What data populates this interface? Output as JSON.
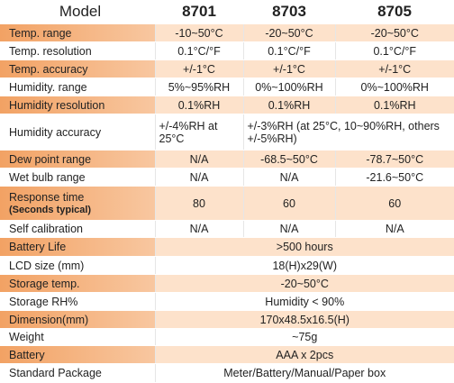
{
  "table": {
    "header": {
      "label": "Model",
      "models": [
        "8701",
        "8703",
        "8705"
      ]
    },
    "rows": [
      {
        "label": "Temp. range",
        "values": [
          "-10~50°C",
          "-20~50°C",
          "-20~50°C"
        ]
      },
      {
        "label": "Temp. resolution",
        "values": [
          "0.1°C/°F",
          "0.1°C/°F",
          "0.1°C/°F"
        ]
      },
      {
        "label": "Temp. accuracy",
        "values": [
          "+/-1°C",
          "+/-1°C",
          "+/-1°C"
        ]
      },
      {
        "label": "Humidity. range",
        "values": [
          "5%~95%RH",
          "0%~100%RH",
          "0%~100%RH"
        ]
      },
      {
        "label": "Humidity resolution",
        "values": [
          "0.1%RH",
          "0.1%RH",
          "0.1%RH"
        ]
      },
      {
        "label": "Humidity accuracy",
        "values": [
          "+/-4%RH at 25°C",
          "+/-3%RH (at 25°C, 10~90%RH, others +/-5%RH)"
        ]
      },
      {
        "label": "Dew point range",
        "values": [
          "N/A",
          "-68.5~50°C",
          "-78.7~50°C"
        ]
      },
      {
        "label": "Wet bulb range",
        "values": [
          "N/A",
          "N/A",
          "-21.6~50°C"
        ]
      },
      {
        "label": "Response time",
        "sublabel": "(Seconds typical)",
        "values": [
          "80",
          "60",
          "60"
        ]
      },
      {
        "label": "Self calibration",
        "values": [
          "N/A",
          "N/A",
          "N/A"
        ]
      },
      {
        "label": "Battery Life",
        "values": [
          ">500 hours"
        ]
      },
      {
        "label": "LCD size (mm)",
        "values": [
          "18(H)x29(W)"
        ]
      },
      {
        "label": "Storage temp.",
        "values": [
          "-20~50°C"
        ]
      },
      {
        "label": "Storage RH%",
        "values": [
          "Humidity < 90%"
        ]
      },
      {
        "label": "Dimension(mm)",
        "values": [
          "170x48.5x16.5(H)"
        ]
      },
      {
        "label": "Weight",
        "values": [
          "~75g"
        ]
      },
      {
        "label": "Battery",
        "values": [
          "AAA x 2pcs"
        ]
      },
      {
        "label": "Standard Package",
        "values": [
          "Meter/Battery/Manual/Paper box"
        ]
      }
    ]
  }
}
